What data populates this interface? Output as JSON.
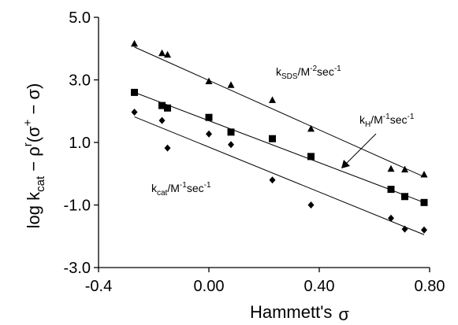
{
  "chart_data": {
    "type": "scatter",
    "xlabel": "Hammett's",
    "xlabel_symbol": "σ",
    "ylabel": {
      "prefix": "log k",
      "sub": "cat",
      "middle": " − ρ",
      "sup_r": "r",
      "paren_open": "(σ",
      "sup_plus": "+",
      "paren_close": " − σ)"
    },
    "xlim": [
      -0.4,
      0.8
    ],
    "ylim": [
      -3.0,
      5.0
    ],
    "x_ticks": [
      -0.4,
      0.0,
      0.4,
      0.8
    ],
    "x_tick_labels": [
      "-0.4",
      "0.00",
      "0.40",
      "0.80"
    ],
    "y_ticks": [
      -3.0,
      -1.0,
      1.0,
      3.0,
      5.0
    ],
    "y_tick_labels": [
      "-3.0",
      "-1.0",
      "1.0",
      "3.0",
      "5.0"
    ],
    "grid": false,
    "series": [
      {
        "marker": "triangle",
        "x": [
          -0.27,
          -0.17,
          -0.15,
          0.0,
          0.08,
          0.23,
          0.37,
          0.66,
          0.71,
          0.78
        ],
        "y": [
          4.15,
          3.85,
          3.8,
          2.95,
          2.83,
          2.35,
          1.43,
          0.15,
          0.13,
          -0.03
        ],
        "fit": [
          [
            -0.27,
            4.05
          ],
          [
            0.78,
            -0.1
          ]
        ]
      },
      {
        "marker": "square",
        "x": [
          -0.27,
          -0.17,
          -0.15,
          0.0,
          0.08,
          0.23,
          0.37,
          0.66,
          0.71,
          0.78
        ],
        "y": [
          2.6,
          2.18,
          2.1,
          1.8,
          1.33,
          1.12,
          0.55,
          -0.5,
          -0.73,
          -0.92
        ],
        "fit": [
          [
            -0.27,
            2.6
          ],
          [
            0.78,
            -0.92
          ]
        ]
      },
      {
        "marker": "diamond",
        "x": [
          -0.27,
          -0.17,
          -0.15,
          0.0,
          0.08,
          0.23,
          0.37,
          0.66,
          0.71,
          0.78
        ],
        "y": [
          1.97,
          1.7,
          0.82,
          1.27,
          0.93,
          -0.2,
          -1.0,
          -1.42,
          -1.77,
          -1.8
        ],
        "fit": [
          [
            -0.27,
            1.82
          ],
          [
            0.78,
            -1.95
          ]
        ]
      }
    ],
    "annotations": [
      {
        "base": "k",
        "sub": "SDS",
        "rest": "/M",
        "sup": "-2",
        "tail": "sec",
        "sup2": "-1"
      },
      {
        "base": "k",
        "sub": "H",
        "rest": "/M",
        "sup": "-1",
        "tail": "sec",
        "sup2": "-1"
      },
      {
        "base": "k",
        "sub": "cat",
        "rest": "/M",
        "sup": "-1",
        "tail": "sec",
        "sup2": "-1"
      }
    ]
  }
}
